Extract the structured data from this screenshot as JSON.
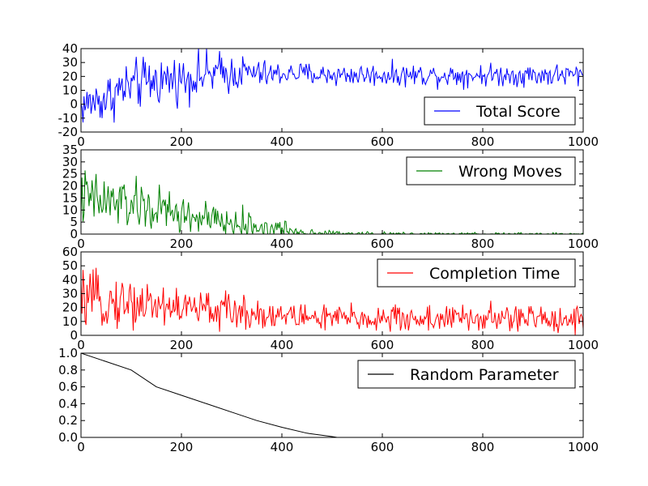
{
  "chart_data": [
    {
      "type": "line",
      "xlim": [
        0,
        1000
      ],
      "ylim": [
        -20,
        40
      ],
      "x_ticks": [
        0,
        200,
        400,
        600,
        800,
        1000
      ],
      "y_ticks": [
        -20,
        -10,
        0,
        10,
        20,
        30,
        40
      ],
      "grid": false,
      "legend_placement": "lower-right",
      "series": [
        {
          "name": "Total Score",
          "color": "#0000ff",
          "x": [
            0,
            25,
            50,
            75,
            100,
            125,
            150,
            175,
            200,
            225,
            250,
            275,
            300,
            325,
            350,
            375,
            400,
            425,
            450,
            475,
            500,
            525,
            550,
            575,
            600,
            625,
            650,
            675,
            700,
            725,
            750,
            775,
            800,
            825,
            850,
            875,
            900,
            925,
            950,
            975,
            1000
          ],
          "y": [
            -2,
            2,
            4,
            10,
            13,
            15,
            17,
            18,
            18,
            20,
            21,
            22,
            22,
            23,
            22,
            21,
            22,
            22,
            22,
            21,
            21,
            21,
            21,
            21,
            21,
            21,
            21,
            21,
            21,
            21,
            21,
            21,
            21,
            21,
            21,
            21,
            21,
            21,
            21,
            21,
            21
          ],
          "noise": [
            7,
            8,
            9,
            9,
            9,
            9,
            9,
            8,
            8,
            8,
            8,
            8,
            7,
            6,
            5,
            5,
            4,
            4,
            4,
            4,
            4,
            4,
            4,
            4,
            4,
            4,
            4,
            4,
            4,
            4,
            4,
            4,
            4,
            4,
            4,
            4,
            4,
            4,
            4,
            4,
            4
          ]
        }
      ]
    },
    {
      "type": "line",
      "xlim": [
        0,
        1000
      ],
      "ylim": [
        0,
        35
      ],
      "x_ticks": [
        0,
        200,
        400,
        600,
        800,
        1000
      ],
      "y_ticks": [
        0,
        5,
        10,
        15,
        20,
        25,
        30,
        35
      ],
      "grid": false,
      "legend_placement": "upper-right",
      "series": [
        {
          "name": "Wrong Moves",
          "color": "#008000",
          "x": [
            0,
            25,
            50,
            75,
            100,
            125,
            150,
            175,
            200,
            225,
            250,
            275,
            300,
            325,
            350,
            375,
            400,
            425,
            450,
            475,
            500,
            525,
            550,
            575,
            600,
            625,
            650,
            675,
            700,
            725,
            750,
            775,
            800,
            825,
            850,
            875,
            900,
            925,
            950,
            975,
            1000
          ],
          "y": [
            15,
            14,
            13,
            13,
            12,
            11,
            10,
            9,
            8,
            7,
            6,
            5,
            4,
            4,
            3,
            2,
            2,
            1,
            0.5,
            0.3,
            0.2,
            0,
            0,
            0,
            0,
            0,
            0,
            0,
            0,
            0,
            0,
            0,
            0,
            0,
            0,
            0,
            0,
            0,
            0,
            0,
            0
          ],
          "noise": [
            6,
            6,
            6,
            6,
            5,
            5,
            5,
            5,
            4,
            4,
            4,
            3,
            3,
            3,
            2,
            2,
            2,
            1.5,
            1,
            1,
            0.8,
            0.6,
            0.5,
            0.5,
            0.4,
            0.4,
            0.4,
            0.3,
            0.3,
            0.3,
            0.3,
            0.3,
            0.3,
            0.3,
            0.3,
            0.3,
            0.3,
            0.3,
            0.3,
            0.3,
            0.3
          ]
        }
      ]
    },
    {
      "type": "line",
      "xlim": [
        0,
        1000
      ],
      "ylim": [
        0,
        60
      ],
      "x_ticks": [
        0,
        200,
        400,
        600,
        800,
        1000
      ],
      "y_ticks": [
        0,
        10,
        20,
        30,
        40,
        50,
        60
      ],
      "grid": false,
      "legend_placement": "upper-right",
      "series": [
        {
          "name": "Completion Time",
          "color": "#ff0000",
          "x": [
            0,
            25,
            50,
            75,
            100,
            125,
            150,
            175,
            200,
            225,
            250,
            275,
            300,
            325,
            350,
            375,
            400,
            425,
            450,
            475,
            500,
            525,
            550,
            575,
            600,
            625,
            650,
            675,
            700,
            725,
            750,
            775,
            800,
            825,
            850,
            875,
            900,
            925,
            950,
            975,
            1000
          ],
          "y": [
            25,
            25,
            24,
            24,
            23,
            23,
            22,
            21,
            20,
            19,
            19,
            18,
            17,
            16,
            16,
            15,
            14,
            14,
            13,
            13,
            12,
            12,
            12,
            12,
            12,
            12,
            12,
            12,
            12,
            12,
            12,
            12,
            12,
            12,
            12,
            12,
            12,
            12,
            12,
            12,
            12
          ],
          "noise": [
            9,
            9,
            9,
            9,
            9,
            9,
            8,
            8,
            8,
            7,
            7,
            7,
            6,
            6,
            6,
            5,
            5,
            5,
            5,
            5,
            5,
            5,
            5,
            5,
            5,
            5,
            5,
            5,
            5,
            5,
            5,
            5,
            5,
            5,
            5,
            5,
            5,
            5,
            5,
            5,
            5
          ]
        }
      ]
    },
    {
      "type": "line",
      "xlim": [
        0,
        1000
      ],
      "ylim": [
        0,
        1.0
      ],
      "x_ticks": [
        0,
        200,
        400,
        600,
        800,
        1000
      ],
      "y_ticks": [
        "0.0",
        "0.2",
        "0.4",
        "0.6",
        "0.8",
        "1.0"
      ],
      "grid": false,
      "legend_placement": "upper-right",
      "series": [
        {
          "name": "Random Parameter",
          "color": "#000000",
          "x": [
            0,
            50,
            100,
            150,
            200,
            250,
            300,
            350,
            400,
            450,
            500,
            510,
            600,
            700,
            800,
            900,
            1000
          ],
          "y": [
            1.0,
            0.9,
            0.8,
            0.6,
            0.5,
            0.4,
            0.3,
            0.2,
            0.12,
            0.05,
            0.01,
            0.0,
            0.0,
            0.0,
            0.0,
            0.0,
            0.0
          ]
        }
      ]
    }
  ]
}
